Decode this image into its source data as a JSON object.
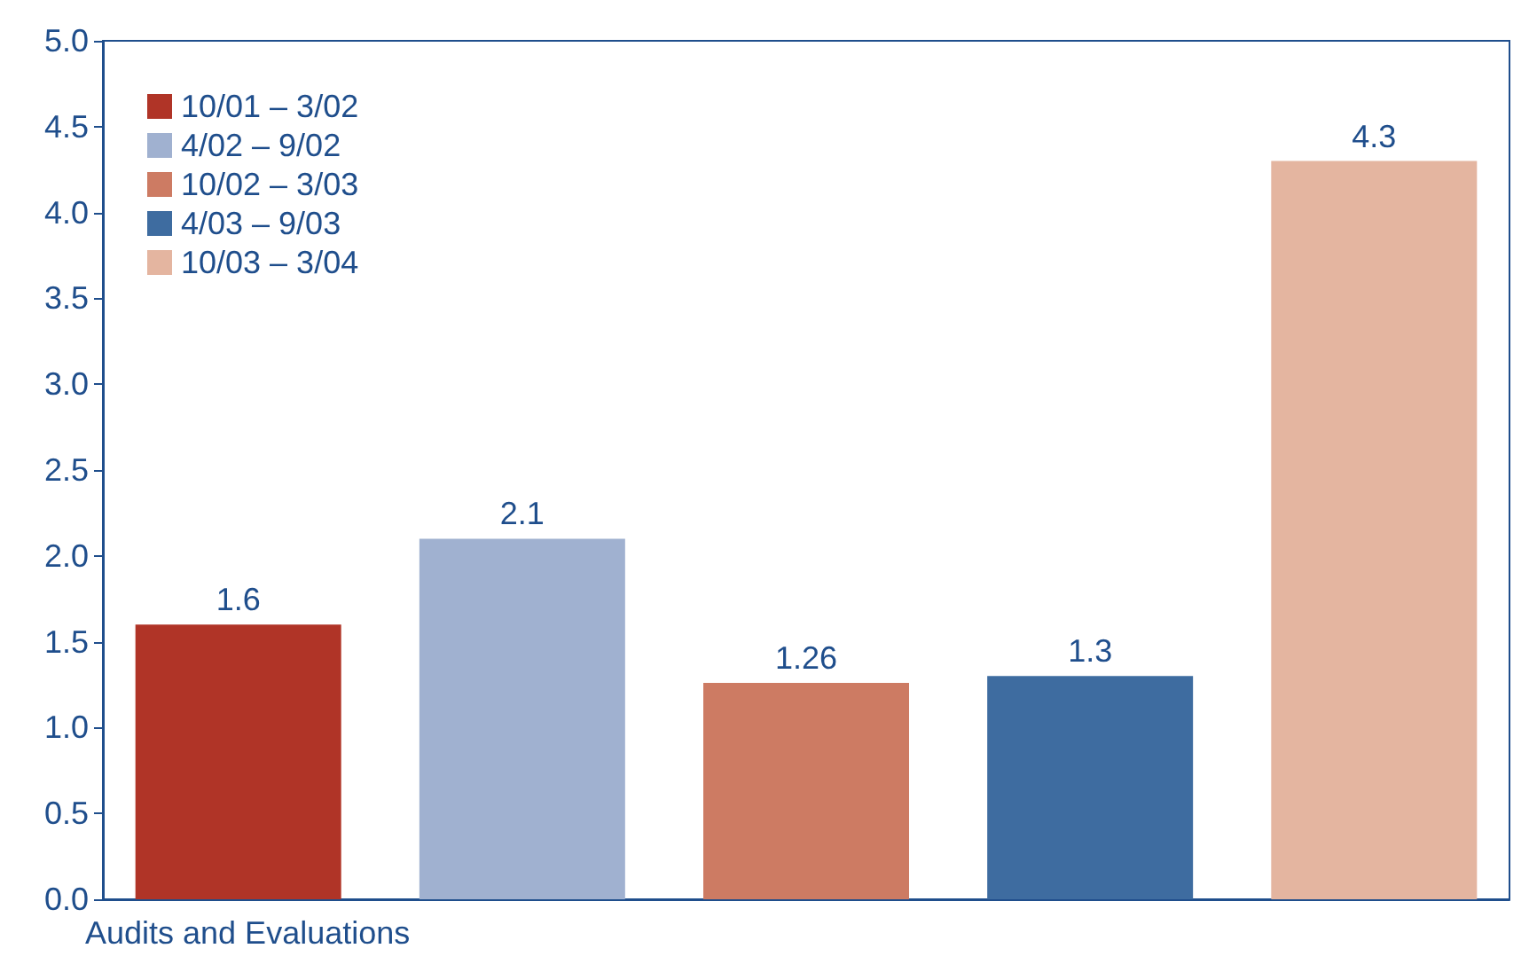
{
  "chart_data": {
    "type": "bar",
    "xlabel": "Audits and Evaluations",
    "categories": [
      null
    ],
    "series": [
      {
        "name": "10/01 – 3/02",
        "color": "#b03427",
        "values": [
          1.6
        ]
      },
      {
        "name": "4/02 – 9/02",
        "color": "#a0b1d0",
        "values": [
          2.1
        ]
      },
      {
        "name": "10/02 – 3/03",
        "color": "#cd7b63",
        "values": [
          1.26
        ]
      },
      {
        "name": "4/03 – 9/03",
        "color": "#3e6ca0",
        "values": [
          1.3
        ]
      },
      {
        "name": "10/03 – 3/04",
        "color": "#e4b5a0",
        "values": [
          4.3
        ]
      }
    ],
    "ylim": [
      0,
      5
    ],
    "yticks": [
      {
        "value": 0,
        "label": "0.0"
      },
      {
        "value": 0.5,
        "label": "0.5"
      },
      {
        "value": 1,
        "label": "1.0"
      },
      {
        "value": 1.5,
        "label": "1.5"
      },
      {
        "value": 2,
        "label": "2.0"
      },
      {
        "value": 2.5,
        "label": "2.5"
      },
      {
        "value": 3,
        "label": "3.0"
      },
      {
        "value": 3.5,
        "label": "3.5"
      },
      {
        "value": 4,
        "label": "4.0"
      },
      {
        "value": 4.5,
        "label": "4.5"
      },
      {
        "value": 5,
        "label": "5.0"
      }
    ],
    "data_labels": true,
    "legend": "top left",
    "grid": false
  }
}
